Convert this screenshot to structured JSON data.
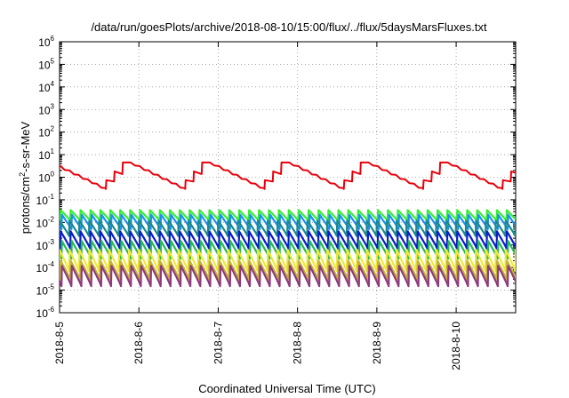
{
  "chart_data": {
    "type": "line",
    "title": "/data/run/goesPlots/archive/2018-08-10/15:00/flux/../flux/5daysMarsFluxes.txt",
    "xlabel": "Coordinated Universal Time (UTC)",
    "ylabel": {
      "prefix": "protons/cm",
      "superscript": "2",
      "suffix": "-s-sr-MeV"
    },
    "y_scale": "log",
    "ylim_exponent": [
      -6,
      6
    ],
    "y_tick_labels": [
      {
        "base": "10",
        "exp": "6"
      },
      {
        "base": "10",
        "exp": "5"
      },
      {
        "base": "10",
        "exp": "4"
      },
      {
        "base": "10",
        "exp": "3"
      },
      {
        "base": "10",
        "exp": "2"
      },
      {
        "base": "10",
        "exp": "1"
      },
      {
        "base": "10",
        "exp": "0"
      },
      {
        "base": "10",
        "exp": "-1"
      },
      {
        "base": "10",
        "exp": "-2"
      },
      {
        "base": "10",
        "exp": "-3"
      },
      {
        "base": "10",
        "exp": "-4"
      },
      {
        "base": "10",
        "exp": "-5"
      },
      {
        "base": "10",
        "exp": "-6"
      }
    ],
    "xlim": [
      "2018-8-5 00:00",
      "2018-8-10 18:00"
    ],
    "x_tick_labels": [
      "2018-8-5",
      "2018-8-6",
      "2018-8-7",
      "2018-8-8",
      "2018-8-9",
      "2018-8-10"
    ],
    "grid": true,
    "grid_style": "dotted",
    "series": [
      {
        "color": "#e8000b",
        "baseline": 0.3,
        "peak": 4.5,
        "cycle_hours": 24,
        "sawtooth_hours": 2.5
      },
      {
        "color": "#33ee33",
        "baseline": 0.012,
        "peak": 0.035,
        "cycle_hours": 3
      },
      {
        "color": "#1f8ef0",
        "baseline": 0.005,
        "peak": 0.022,
        "cycle_hours": 3
      },
      {
        "color": "#1a8a8a",
        "baseline": 0.0025,
        "peak": 0.012,
        "cycle_hours": 3
      },
      {
        "color": "#0a1ec8",
        "baseline": 0.0007,
        "peak": 0.004,
        "cycle_hours": 3
      },
      {
        "color": "#27b85a",
        "baseline": 0.00025,
        "peak": 0.0015,
        "cycle_hours": 3
      },
      {
        "color": "#f0e83a",
        "baseline": 7e-05,
        "peak": 0.0006,
        "cycle_hours": 3
      },
      {
        "color": "#c4b23a",
        "baseline": 3e-05,
        "peak": 0.0002,
        "cycle_hours": 3
      },
      {
        "color": "#8e3b7d",
        "baseline": 1.5e-05,
        "peak": 0.00012,
        "cycle_hours": 3
      }
    ]
  }
}
